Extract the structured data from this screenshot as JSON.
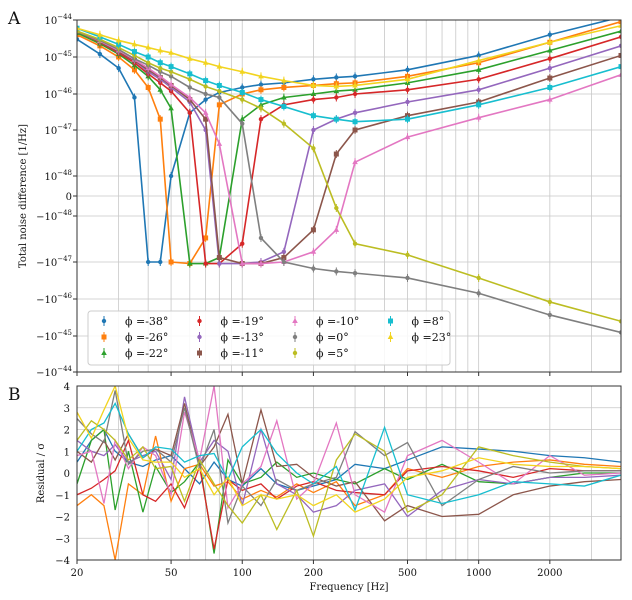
{
  "chart_data": [
    {
      "panel_label": "A",
      "type": "line",
      "ylabel": "Total noise difference [1/Hz]",
      "xscale": "log",
      "yscale": "symlog",
      "xlim": [
        20,
        4000
      ],
      "ylim": [
        -1e-44,
        1e-44
      ],
      "grid": true,
      "legend_placement": "lower-left",
      "ytick_labels": [
        {
          "value": 1e-44,
          "base": "10",
          "exp": "−44",
          "sign": ""
        },
        {
          "value": 1e-45,
          "base": "10",
          "exp": "−45",
          "sign": ""
        },
        {
          "value": 1e-46,
          "base": "10",
          "exp": "−46",
          "sign": ""
        },
        {
          "value": 1e-47,
          "base": "10",
          "exp": "−47",
          "sign": ""
        },
        {
          "value": 1e-48,
          "base": "10",
          "exp": "−48",
          "sign": ""
        },
        {
          "value": 0,
          "base": "0",
          "exp": "",
          "sign": ""
        },
        {
          "value": -1e-48,
          "base": "10",
          "exp": "−48",
          "sign": "−"
        },
        {
          "value": -1e-47,
          "base": "10",
          "exp": "−47",
          "sign": "−"
        },
        {
          "value": -1e-46,
          "base": "10",
          "exp": "−46",
          "sign": "−"
        },
        {
          "value": -1e-45,
          "base": "10",
          "exp": "−45",
          "sign": "−"
        },
        {
          "value": -1e-44,
          "base": "10",
          "exp": "−44",
          "sign": "−"
        }
      ],
      "x": [
        20,
        25,
        30,
        35,
        40,
        45,
        50,
        60,
        70,
        80,
        100,
        120,
        150,
        200,
        250,
        300,
        500,
        1000,
        2000,
        4000
      ],
      "series": [
        {
          "name": "ϕ =-38°",
          "color": "#1f77b4",
          "marker": "circle",
          "values": [
            3e-45,
            1.2e-45,
            5e-46,
            8e-47,
            -1e-47,
            -1e-47,
            1e-48,
            3e-47,
            7e-47,
            1.1e-46,
            1.5e-46,
            1.8e-46,
            2e-46,
            2.5e-46,
            2.8e-46,
            3e-46,
            4.5e-46,
            1.1e-45,
            4e-45,
            1.2e-44
          ]
        },
        {
          "name": "ϕ =-26°",
          "color": "#ff7f0e",
          "marker": "square",
          "values": [
            4e-45,
            2e-45,
            1e-45,
            4.5e-46,
            1.5e-46,
            2e-47,
            -1e-47,
            -1.1e-47,
            -3e-48,
            5e-47,
            1e-46,
            1.3e-46,
            1.5e-46,
            1.7e-46,
            1.9e-46,
            2e-46,
            3e-46,
            7e-46,
            2.5e-45,
            9e-45
          ]
        },
        {
          "name": "ϕ =-22°",
          "color": "#2ca02c",
          "marker": "triangle",
          "values": [
            4.5e-45,
            2.3e-45,
            1.2e-45,
            6e-46,
            3e-46,
            1.3e-46,
            4e-47,
            -1.1e-47,
            -1.1e-47,
            -8e-48,
            2e-47,
            5e-47,
            8e-47,
            1e-46,
            1.2e-46,
            1.3e-46,
            2e-46,
            4.5e-46,
            1.5e-45,
            5e-45
          ]
        },
        {
          "name": "ϕ =-19°",
          "color": "#d62728",
          "marker": "circle",
          "values": [
            5e-45,
            2.5e-45,
            1.3e-45,
            7e-46,
            3.5e-46,
            2e-46,
            1.2e-46,
            3e-47,
            -1.1e-47,
            -1.1e-47,
            -4e-48,
            2e-47,
            5e-47,
            7e-47,
            8e-47,
            1e-46,
            1.3e-46,
            2.5e-46,
            9e-46,
            3.5e-45
          ]
        },
        {
          "name": "ϕ =-13°",
          "color": "#9467bd",
          "marker": "circle",
          "values": [
            5e-45,
            2.6e-45,
            1.4e-45,
            8e-46,
            4e-46,
            2.5e-46,
            1.5e-46,
            6e-47,
            1e-47,
            -1.1e-47,
            -1.1e-47,
            -1e-47,
            -6e-48,
            1e-47,
            2e-47,
            3e-47,
            6e-47,
            1.3e-46,
            5e-46,
            2e-45
          ]
        },
        {
          "name": "ϕ =-11°",
          "color": "#8c564b",
          "marker": "square",
          "values": [
            5e-45,
            2.6e-45,
            1.4e-45,
            8e-46,
            4.5e-46,
            2.8e-46,
            1.7e-46,
            7e-47,
            2e-47,
            -8e-48,
            -1.1e-47,
            -1.1e-47,
            -8e-48,
            -2e-48,
            3e-48,
            1e-47,
            2.5e-47,
            6e-47,
            2.7e-46,
            1.1e-45
          ]
        },
        {
          "name": "ϕ =-10°",
          "color": "#e377c2",
          "marker": "triangle",
          "values": [
            5e-45,
            2.7e-45,
            1.5e-45,
            8.5e-46,
            5e-46,
            3e-46,
            1.8e-46,
            8e-47,
            3e-47,
            5e-48,
            -1.1e-47,
            -1.1e-47,
            -1e-47,
            -6e-48,
            -2e-48,
            2e-48,
            7e-48,
            2.2e-47,
            7e-47,
            3.3e-46
          ]
        },
        {
          "name": "ϕ =0°",
          "color": "#7f7f7f",
          "marker": "circle",
          "values": [
            5e-45,
            2.8e-45,
            1.6e-45,
            9e-46,
            6e-46,
            4e-46,
            3e-46,
            1.5e-46,
            1e-46,
            8e-47,
            1.5e-47,
            -3e-48,
            -1e-47,
            -1.5e-47,
            -1.8e-47,
            -2e-47,
            -2.7e-47,
            -7e-47,
            -2.7e-46,
            -8e-46
          ]
        },
        {
          "name": "ϕ =5°",
          "color": "#bcbd22",
          "marker": "circle",
          "values": [
            5e-45,
            3e-45,
            1.8e-45,
            1.1e-45,
            7e-46,
            5e-46,
            4e-46,
            2.5e-46,
            1.6e-46,
            1.2e-46,
            7e-47,
            4e-47,
            1.5e-47,
            4e-48,
            -6e-49,
            -4e-48,
            -7e-48,
            -2.7e-47,
            -1.2e-46,
            -4e-46
          ]
        },
        {
          "name": "ϕ =8°",
          "color": "#17becf",
          "marker": "square",
          "values": [
            6e-45,
            3.5e-45,
            2.2e-45,
            1.4e-45,
            1e-45,
            7e-46,
            5.5e-46,
            3.5e-46,
            2.3e-46,
            1.7e-46,
            1.1e-46,
            7e-47,
            4.5e-47,
            2.5e-47,
            2e-47,
            1.7e-47,
            2e-47,
            5e-47,
            1.5e-46,
            5.5e-46
          ]
        },
        {
          "name": "ϕ =23°",
          "color": "#f2d41f",
          "marker": "triangle",
          "values": [
            6e-45,
            4e-45,
            2.8e-45,
            2.2e-45,
            1.8e-45,
            1.5e-45,
            1.3e-45,
            9e-46,
            7e-46,
            5.5e-46,
            4e-46,
            3e-46,
            2.3e-46,
            1.7e-46,
            1.6e-46,
            1.7e-46,
            2.5e-46,
            8e-46,
            2.5e-45,
            7e-45
          ]
        }
      ]
    },
    {
      "panel_label": "B",
      "type": "line",
      "xlabel": "Frequency [Hz]",
      "ylabel": "Residual / σ",
      "xscale": "log",
      "xlim": [
        20,
        4000
      ],
      "ylim": [
        -4,
        4
      ],
      "grid": true,
      "yticks": [
        "4",
        "3",
        "2",
        "1",
        "0",
        "−1",
        "−2",
        "−3",
        "−4"
      ],
      "xticks": [
        "20",
        "50",
        "100",
        "200",
        "500",
        "1000",
        "2000"
      ],
      "x": [
        20,
        23,
        26,
        29,
        33,
        38,
        43,
        50,
        57,
        66,
        76,
        87,
        100,
        120,
        140,
        170,
        200,
        250,
        300,
        400,
        500,
        700,
        1000,
        1400,
        2000,
        2800,
        4000
      ],
      "series": [
        {
          "color": "#1f77b4",
          "values": [
            0.5,
            1.5,
            2,
            1,
            0.5,
            0.3,
            0.6,
            0.8,
            0.2,
            -0.5,
            0.5,
            -0.3,
            -0.6,
            0.2,
            -0.5,
            -0.8,
            -0.6,
            -0.3,
            0.4,
            0.2,
            0.6,
            1.2,
            1.1,
            1.0,
            0.8,
            0.7,
            0.5
          ]
        },
        {
          "color": "#ff7f0e",
          "values": [
            -1.5,
            -1,
            -1.5,
            -4,
            -0.5,
            -1,
            1.7,
            -1.3,
            0.2,
            0.4,
            -0.6,
            -0.4,
            -1.2,
            -0.8,
            -1.1,
            -0.5,
            -0.9,
            -0.4,
            -1.5,
            -1,
            0.2,
            -0.2,
            0.3,
            0.5,
            0.6,
            0.4,
            0.3
          ]
        },
        {
          "color": "#2ca02c",
          "values": [
            -0.5,
            1.5,
            2,
            -1.7,
            1,
            -1.8,
            0.3,
            -0.9,
            -0.4,
            0.5,
            -3.7,
            0.6,
            -0.5,
            -0.2,
            0.5,
            -0.2,
            0,
            -0.3,
            -0.5,
            0.2,
            -0.3,
            0.4,
            -0.4,
            -0.5,
            -0.2,
            0,
            0
          ]
        },
        {
          "color": "#d62728",
          "values": [
            -1,
            -0.7,
            -0.3,
            0.1,
            1.5,
            -1,
            -1.3,
            -0.5,
            -1.6,
            0.3,
            -3.5,
            -0.3,
            -0.8,
            -0.5,
            -1.2,
            -0.6,
            -0.4,
            -0.8,
            -0.9,
            -1,
            0.1,
            0.3,
            0.1,
            -0.2,
            0.2,
            0.1,
            0.1
          ]
        },
        {
          "color": "#9467bd",
          "values": [
            1.5,
            1,
            0.8,
            1.3,
            0.5,
            0.8,
            1,
            -0.3,
            3.5,
            0.5,
            1.5,
            1,
            -1.5,
            2,
            -0.5,
            -1,
            -1.8,
            -1.5,
            -0.8,
            -0.5,
            -2,
            -0.8,
            -0.3,
            -0.5,
            -0.2,
            -0.2,
            -0.1
          ]
        },
        {
          "color": "#8c564b",
          "values": [
            1,
            0.5,
            1.5,
            0.6,
            1.8,
            0.7,
            1.1,
            0.8,
            3.2,
            0.3,
            1.2,
            2.7,
            -0.5,
            2.9,
            0.3,
            0.4,
            -0.2,
            -0.6,
            -0.4,
            -2.2,
            -1.5,
            -2,
            -1.9,
            -1,
            -0.6,
            -0.4,
            -0.3
          ]
        },
        {
          "color": "#e377c2",
          "values": [
            0.8,
            1,
            -1.4,
            1.5,
            0.2,
            1.2,
            0.8,
            -1,
            2.8,
            0.6,
            4,
            -1.6,
            -0.5,
            0.3,
            2.4,
            -1.2,
            -0.5,
            2.3,
            -1,
            -1.8,
            0.8,
            1.5,
            0.5,
            -0.5,
            0.8,
            -0.1,
            0
          ]
        },
        {
          "color": "#7f7f7f",
          "values": [
            2.5,
            1.8,
            1.4,
            3.8,
            0.4,
            1,
            1.1,
            0.5,
            3,
            0.2,
            2,
            -2.3,
            -0.6,
            -1.5,
            -0.3,
            -0.8,
            -0.5,
            -0.2,
            1.9,
            0.8,
            1.4,
            -1.5,
            -0.3,
            0.3,
            0,
            0.1,
            0.1
          ]
        },
        {
          "color": "#bcbd22",
          "values": [
            1.5,
            2.4,
            2,
            1.5,
            0.6,
            1.2,
            0.2,
            0.3,
            -1.3,
            0.6,
            -0.5,
            -1.5,
            -2.3,
            -1,
            -2.6,
            -0.8,
            -2.9,
            0.6,
            1.8,
            1,
            -1.8,
            -1,
            1.2,
            0.8,
            0.5,
            0.3,
            0.2
          ]
        },
        {
          "color": "#17becf",
          "values": [
            1,
            2,
            2.3,
            3.2,
            1.8,
            0.7,
            1.2,
            1.1,
            0.5,
            0.8,
            0.9,
            -0.3,
            1.2,
            2,
            0.9,
            0,
            -0.5,
            0.3,
            -1.7,
            2.1,
            -1,
            -1.4,
            -1,
            -0.4,
            -0.5,
            -0.6,
            -0.1
          ]
        },
        {
          "color": "#f2d41f",
          "values": [
            2.8,
            1.6,
            2.9,
            4,
            1.6,
            0.6,
            0.5,
            0.5,
            -0.2,
            0.2,
            -1,
            -0.2,
            -1.5,
            -1,
            -1.2,
            -1,
            -1.5,
            -1,
            -1.8,
            -1.2,
            -0.2,
            0.1,
            0.7,
            0.4,
            0.3,
            0.3,
            0.2
          ]
        }
      ]
    }
  ]
}
